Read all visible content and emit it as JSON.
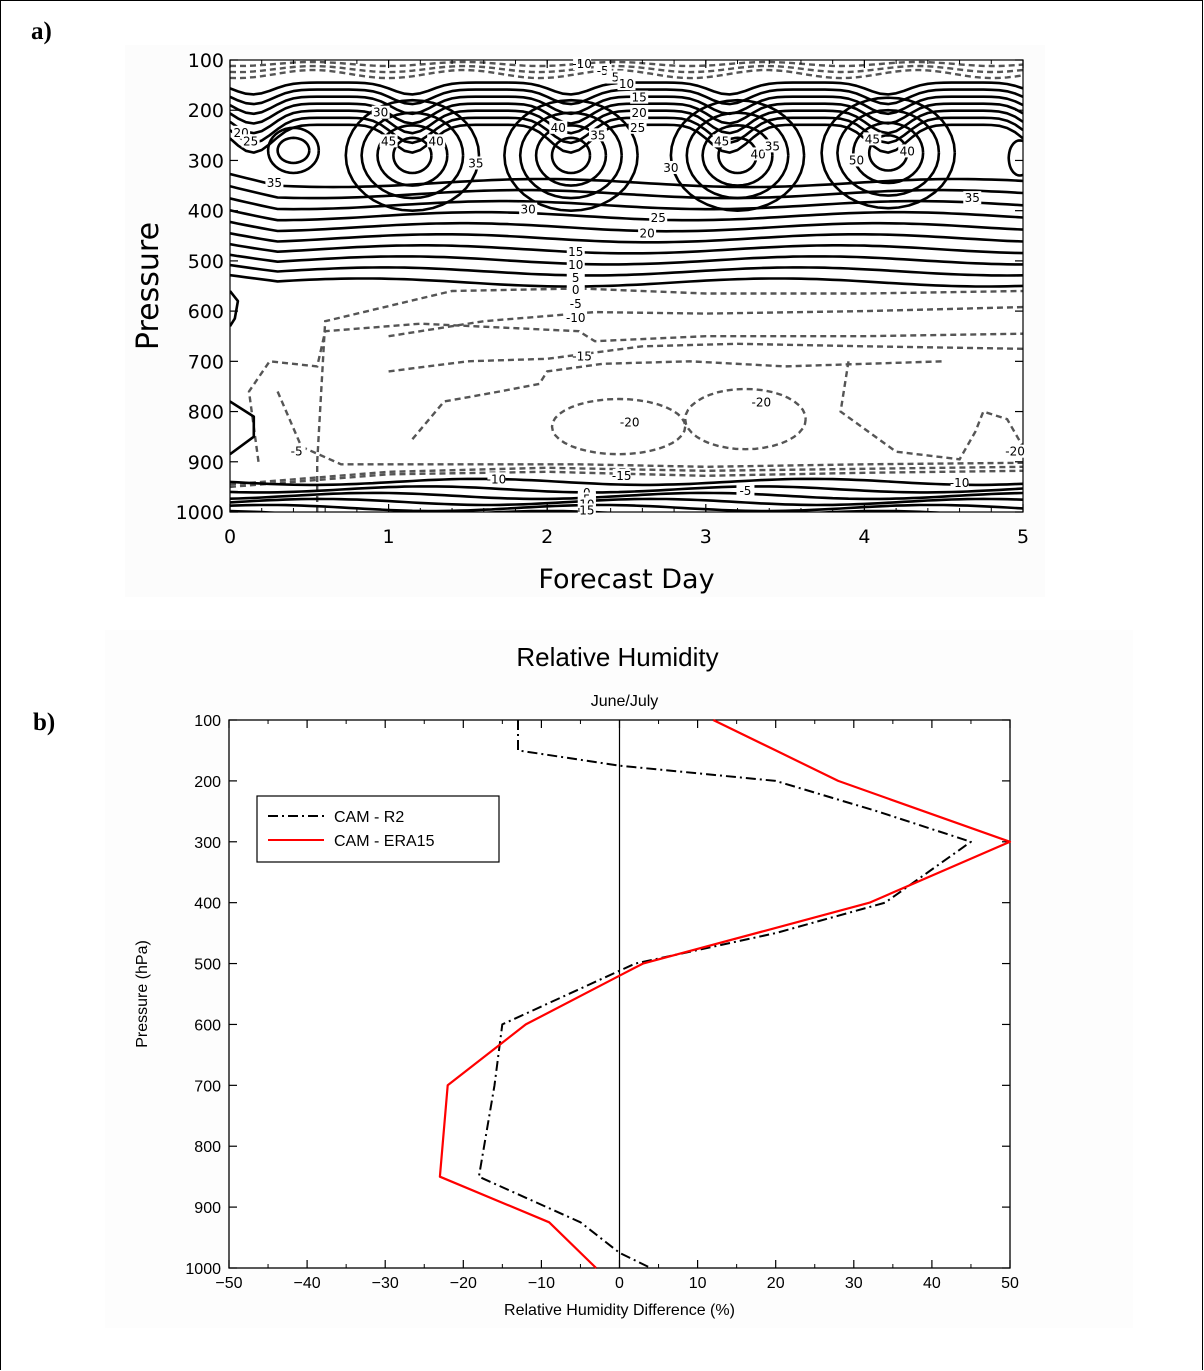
{
  "panel_labels": {
    "a": "a)",
    "b": "b)"
  },
  "chart_data": [
    {
      "type": "contour",
      "title": "",
      "xlabel": "Forecast Day",
      "ylabel": "Pressure",
      "x_ticks": [
        "0",
        "1",
        "2",
        "3",
        "4",
        "5"
      ],
      "y_ticks": [
        "100",
        "200",
        "300",
        "400",
        "500",
        "600",
        "700",
        "800",
        "900",
        "1000"
      ],
      "xlim": [
        0,
        5
      ],
      "ylim": [
        1000,
        100
      ],
      "y_inverted": true,
      "grid": false,
      "contour_interval": 5,
      "negative_contours": "dashed",
      "contour_labels": [
        {
          "text": "-10",
          "x": 2.22,
          "y": 108
        },
        {
          "text": "-5",
          "x": 2.35,
          "y": 122
        },
        {
          "text": "5",
          "x": 2.43,
          "y": 135
        },
        {
          "text": "10",
          "x": 2.5,
          "y": 148
        },
        {
          "text": "15",
          "x": 2.58,
          "y": 175
        },
        {
          "text": "20",
          "x": 2.58,
          "y": 206
        },
        {
          "text": "25",
          "x": 2.57,
          "y": 235
        },
        {
          "text": "30",
          "x": 0.95,
          "y": 205
        },
        {
          "text": "45",
          "x": 1.0,
          "y": 262
        },
        {
          "text": "40",
          "x": 1.3,
          "y": 262
        },
        {
          "text": "35",
          "x": 1.55,
          "y": 306
        },
        {
          "text": "40",
          "x": 2.07,
          "y": 235
        },
        {
          "text": "35",
          "x": 2.32,
          "y": 250
        },
        {
          "text": "30",
          "x": 2.78,
          "y": 315
        },
        {
          "text": "45",
          "x": 3.1,
          "y": 262
        },
        {
          "text": "40",
          "x": 3.33,
          "y": 288
        },
        {
          "text": "35",
          "x": 3.42,
          "y": 272
        },
        {
          "text": "45",
          "x": 4.05,
          "y": 258
        },
        {
          "text": "50",
          "x": 3.95,
          "y": 300
        },
        {
          "text": "40",
          "x": 4.27,
          "y": 282
        },
        {
          "text": "35",
          "x": 4.68,
          "y": 375
        },
        {
          "text": "20",
          "x": 0.07,
          "y": 245
        },
        {
          "text": "25",
          "x": 0.13,
          "y": 262
        },
        {
          "text": "35",
          "x": 0.28,
          "y": 345
        },
        {
          "text": "30",
          "x": 1.88,
          "y": 398
        },
        {
          "text": "25",
          "x": 2.7,
          "y": 415
        },
        {
          "text": "20",
          "x": 2.63,
          "y": 445
        },
        {
          "text": "15",
          "x": 2.18,
          "y": 482
        },
        {
          "text": "10",
          "x": 2.18,
          "y": 508
        },
        {
          "text": "5",
          "x": 2.18,
          "y": 534
        },
        {
          "text": "0",
          "x": 2.18,
          "y": 558
        },
        {
          "text": "-5",
          "x": 2.18,
          "y": 586
        },
        {
          "text": "-10",
          "x": 2.18,
          "y": 614
        },
        {
          "text": "-15",
          "x": 2.22,
          "y": 690
        },
        {
          "text": "-20",
          "x": 2.52,
          "y": 822
        },
        {
          "text": "-20",
          "x": 3.35,
          "y": 782
        },
        {
          "text": "-20",
          "x": 4.95,
          "y": 880
        },
        {
          "text": "-5",
          "x": 0.42,
          "y": 880
        },
        {
          "text": "-10",
          "x": 1.68,
          "y": 935
        },
        {
          "text": "-15",
          "x": 2.47,
          "y": 928
        },
        {
          "text": "-5",
          "x": 3.25,
          "y": 958
        },
        {
          "text": "-10",
          "x": 4.6,
          "y": 942
        },
        {
          "text": "0",
          "x": 2.25,
          "y": 962
        },
        {
          "text": "5",
          "x": 2.25,
          "y": 975
        },
        {
          "text": "10",
          "x": 2.25,
          "y": 985
        },
        {
          "text": "15",
          "x": 2.25,
          "y": 997
        }
      ]
    },
    {
      "type": "line",
      "title": "Relative Humidity",
      "subtitle": "June/July",
      "xlabel": "Relative Humidity Difference (%)",
      "ylabel": "Pressure (hPa)",
      "x_ticks": [
        "-50",
        "-40",
        "-30",
        "-20",
        "-10",
        "0",
        "10",
        "20",
        "30",
        "40",
        "50"
      ],
      "y_ticks": [
        "100",
        "200",
        "300",
        "400",
        "500",
        "600",
        "700",
        "800",
        "900",
        "1000"
      ],
      "xlim": [
        -50,
        50
      ],
      "ylim": [
        1000,
        100
      ],
      "y_inverted": true,
      "zero_line": true,
      "grid": false,
      "legend_position": "top-left",
      "series": [
        {
          "name": "CAM - R2",
          "style": "dash-dot",
          "color": "#000000",
          "points": [
            {
              "x": -13,
              "y": 100
            },
            {
              "x": -13,
              "y": 150
            },
            {
              "x": 0,
              "y": 175
            },
            {
              "x": 20,
              "y": 200
            },
            {
              "x": 33,
              "y": 250
            },
            {
              "x": 45,
              "y": 300
            },
            {
              "x": 34,
              "y": 400
            },
            {
              "x": 20,
              "y": 450
            },
            {
              "x": 2,
              "y": 500
            },
            {
              "x": -15,
              "y": 600
            },
            {
              "x": -16,
              "y": 700
            },
            {
              "x": -18,
              "y": 850
            },
            {
              "x": -5,
              "y": 925
            },
            {
              "x": 0,
              "y": 975
            },
            {
              "x": 4,
              "y": 1000
            }
          ]
        },
        {
          "name": "CAM - ERA15",
          "style": "solid",
          "color": "#ff0000",
          "points": [
            {
              "x": 12,
              "y": 100
            },
            {
              "x": 20,
              "y": 150
            },
            {
              "x": 28,
              "y": 200
            },
            {
              "x": 50,
              "y": 300
            },
            {
              "x": 32,
              "y": 400
            },
            {
              "x": 3,
              "y": 500
            },
            {
              "x": 0,
              "y": 520
            },
            {
              "x": -12,
              "y": 600
            },
            {
              "x": -22,
              "y": 700
            },
            {
              "x": -23,
              "y": 850
            },
            {
              "x": -9,
              "y": 925
            },
            {
              "x": -3,
              "y": 1000
            }
          ]
        }
      ]
    }
  ]
}
